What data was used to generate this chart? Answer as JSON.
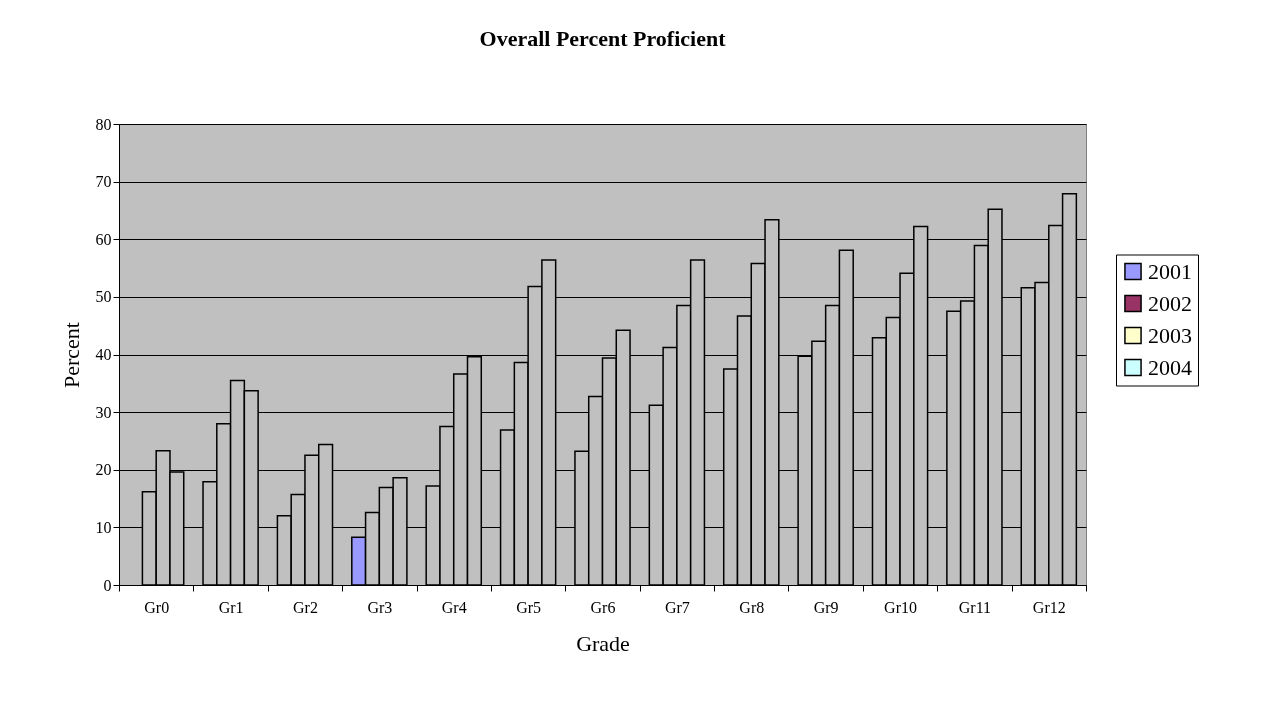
{
  "chart_data": {
    "type": "bar",
    "title": "Overall Percent Proficient",
    "xlabel": "Grade",
    "ylabel": "Percent",
    "categories": [
      "Gr0",
      "Gr1",
      "Gr2",
      "Gr3",
      "Gr4",
      "Gr5",
      "Gr6",
      "Gr7",
      "Gr8",
      "Gr9",
      "Gr10",
      "Gr11",
      "Gr12"
    ],
    "series": [
      {
        "name": "2001",
        "color": "#9999ff",
        "colors": [
          null,
          "#c0c0c0",
          "#c0c0c0",
          "#9999ff",
          "#c0c0c0",
          "#c0c0c0",
          "#c0c0c0",
          "#c0c0c0",
          "#c0c0c0",
          "#c0c0c0",
          "#c0c0c0",
          "#c0c0c0",
          "#c0c0c0"
        ],
        "values": [
          null,
          17.9,
          12.0,
          8.3,
          17.2,
          26.9,
          23.2,
          31.2,
          37.5,
          39.7,
          42.9,
          47.5,
          51.6
        ]
      },
      {
        "name": "2002",
        "color": "#993366",
        "colors": [
          "#c0c0c0",
          "#c0c0c0",
          "#c0c0c0",
          "#c0c0c0",
          "#c0c0c0",
          "#c0c0c0",
          "#c0c0c0",
          "#c0c0c0",
          "#c0c0c0",
          "#c0c0c0",
          "#c0c0c0",
          "#c0c0c0",
          "#c0c0c0"
        ],
        "values": [
          16.2,
          28.0,
          15.7,
          12.6,
          27.5,
          38.6,
          32.7,
          41.2,
          46.7,
          42.3,
          46.4,
          49.3,
          52.5
        ]
      },
      {
        "name": "2003",
        "color": "#ffffcc",
        "colors": [
          "#c0c0c0",
          "#c0c0c0",
          "#c0c0c0",
          "#c0c0c0",
          "#c0c0c0",
          "#c0c0c0",
          "#c0c0c0",
          "#c0c0c0",
          "#c0c0c0",
          "#c0c0c0",
          "#c0c0c0",
          "#c0c0c0",
          "#c0c0c0"
        ],
        "values": [
          23.3,
          35.5,
          22.5,
          16.9,
          36.6,
          51.8,
          39.4,
          48.5,
          55.8,
          48.5,
          54.1,
          58.9,
          62.4
        ]
      },
      {
        "name": "2004",
        "color": "#ccffff",
        "colors": [
          "#c0c0c0",
          "#c0c0c0",
          "#c0c0c0",
          "#c0c0c0",
          "#c0c0c0",
          "#c0c0c0",
          "#c0c0c0",
          "#c0c0c0",
          "#c0c0c0",
          "#c0c0c0",
          "#c0c0c0",
          "#c0c0c0",
          "#c0c0c0"
        ],
        "values": [
          19.6,
          33.7,
          24.4,
          18.6,
          39.6,
          56.4,
          44.2,
          56.4,
          63.4,
          58.1,
          62.2,
          65.2,
          67.9
        ]
      }
    ],
    "ylim": [
      0,
      80
    ],
    "yticks": [
      0,
      10,
      20,
      30,
      40,
      50,
      60,
      70,
      80
    ],
    "grid": "y",
    "legend": "right"
  }
}
